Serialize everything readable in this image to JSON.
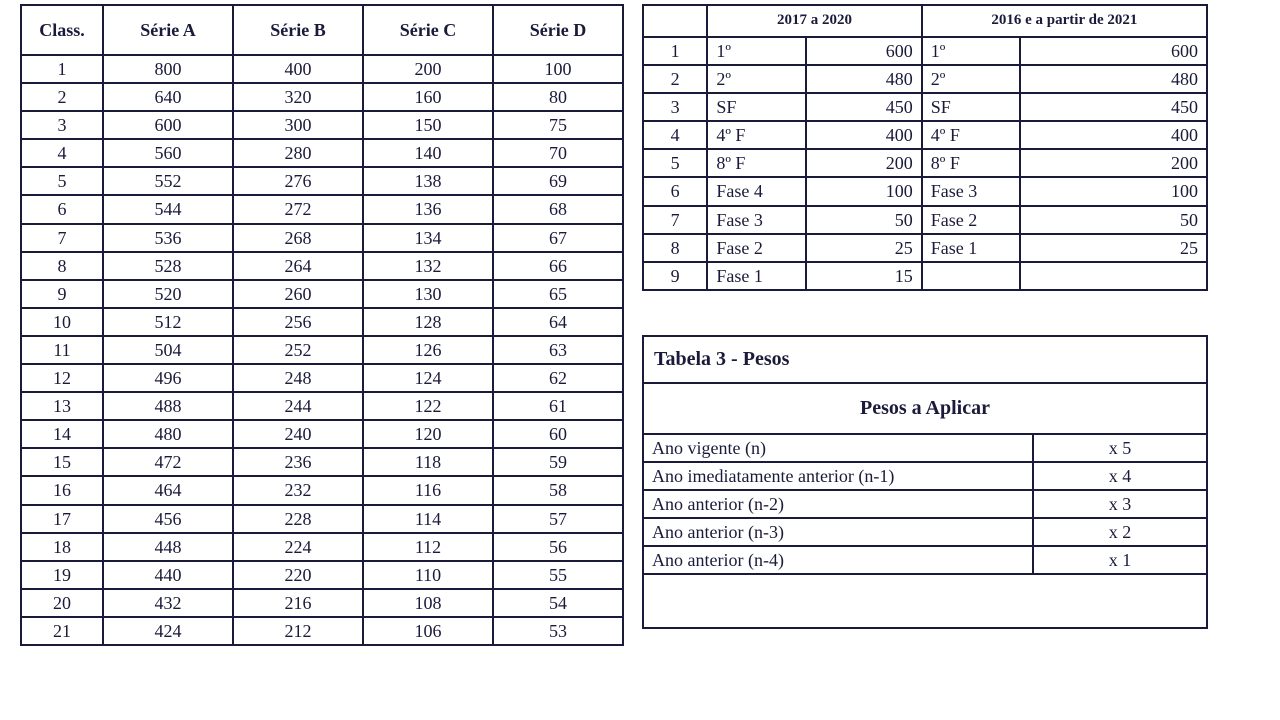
{
  "series_table": {
    "header_class": "Class.",
    "headers": [
      "Série A",
      "Série B",
      "Série C",
      "Série D"
    ],
    "rows": [
      [
        1,
        800,
        400,
        200,
        100
      ],
      [
        2,
        640,
        320,
        160,
        80
      ],
      [
        3,
        600,
        300,
        150,
        75
      ],
      [
        4,
        560,
        280,
        140,
        70
      ],
      [
        5,
        552,
        276,
        138,
        69
      ],
      [
        6,
        544,
        272,
        136,
        68
      ],
      [
        7,
        536,
        268,
        134,
        67
      ],
      [
        8,
        528,
        264,
        132,
        66
      ],
      [
        9,
        520,
        260,
        130,
        65
      ],
      [
        10,
        512,
        256,
        128,
        64
      ],
      [
        11,
        504,
        252,
        126,
        63
      ],
      [
        12,
        496,
        248,
        124,
        62
      ],
      [
        13,
        488,
        244,
        122,
        61
      ],
      [
        14,
        480,
        240,
        120,
        60
      ],
      [
        15,
        472,
        236,
        118,
        59
      ],
      [
        16,
        464,
        232,
        116,
        58
      ],
      [
        17,
        456,
        228,
        114,
        57
      ],
      [
        18,
        448,
        224,
        112,
        56
      ],
      [
        19,
        440,
        220,
        110,
        55
      ],
      [
        20,
        432,
        216,
        108,
        54
      ],
      [
        21,
        424,
        212,
        106,
        53
      ]
    ]
  },
  "phase_table": {
    "header_a": "2017 a 2020",
    "header_b": "2016 e a partir de 2021",
    "rows": [
      {
        "n": 1,
        "a_label": "1º",
        "a_val": 600,
        "b_label": "1º",
        "b_val": 600
      },
      {
        "n": 2,
        "a_label": "2º",
        "a_val": 480,
        "b_label": "2º",
        "b_val": 480
      },
      {
        "n": 3,
        "a_label": "SF",
        "a_val": 450,
        "b_label": "SF",
        "b_val": 450
      },
      {
        "n": 4,
        "a_label": "4º F",
        "a_val": 400,
        "b_label": "4º F",
        "b_val": 400
      },
      {
        "n": 5,
        "a_label": "8º F",
        "a_val": 200,
        "b_label": "8º F",
        "b_val": 200
      },
      {
        "n": 6,
        "a_label": "Fase 4",
        "a_val": 100,
        "b_label": "Fase 3",
        "b_val": 100
      },
      {
        "n": 7,
        "a_label": "Fase 3",
        "a_val": 50,
        "b_label": "Fase 2",
        "b_val": 50
      },
      {
        "n": 8,
        "a_label": "Fase 2",
        "a_val": 25,
        "b_label": "Fase 1",
        "b_val": 25
      },
      {
        "n": 9,
        "a_label": "Fase 1",
        "a_val": 15,
        "b_label": "",
        "b_val": ""
      }
    ]
  },
  "weights_table": {
    "title": "Tabela 3 - Pesos",
    "subtitle": "Pesos a Aplicar",
    "rows": [
      {
        "label": "Ano vigente (n)",
        "mult": "x 5"
      },
      {
        "label": "Ano imediatamente anterior  (n-1)",
        "mult": "x 4"
      },
      {
        "label": "Ano anterior  (n-2)",
        "mult": "x 3"
      },
      {
        "label": "Ano anterior  (n-3)",
        "mult": "x 2"
      },
      {
        "label": "Ano anterior  (n-4)",
        "mult": "x 1"
      }
    ]
  }
}
